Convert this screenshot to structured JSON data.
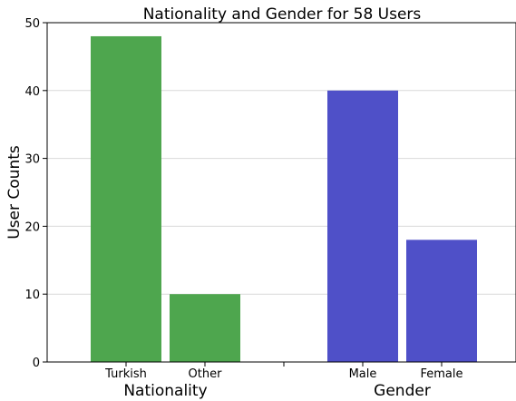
{
  "chart_data": {
    "type": "bar",
    "title": "Nationality and Gender for 58 Users",
    "ylabel": "User Counts",
    "ylim": [
      0,
      50
    ],
    "yticks": [
      0,
      10,
      20,
      30,
      40,
      50
    ],
    "grid": true,
    "groups": [
      {
        "label": "Nationality",
        "color": "#4ea64e",
        "categories": [
          "Turkish",
          "Other"
        ],
        "values": [
          48,
          10
        ]
      },
      {
        "label": "Gender",
        "color": "#4f50c8",
        "categories": [
          "Male",
          "Female"
        ],
        "values": [
          40,
          18
        ]
      }
    ]
  }
}
